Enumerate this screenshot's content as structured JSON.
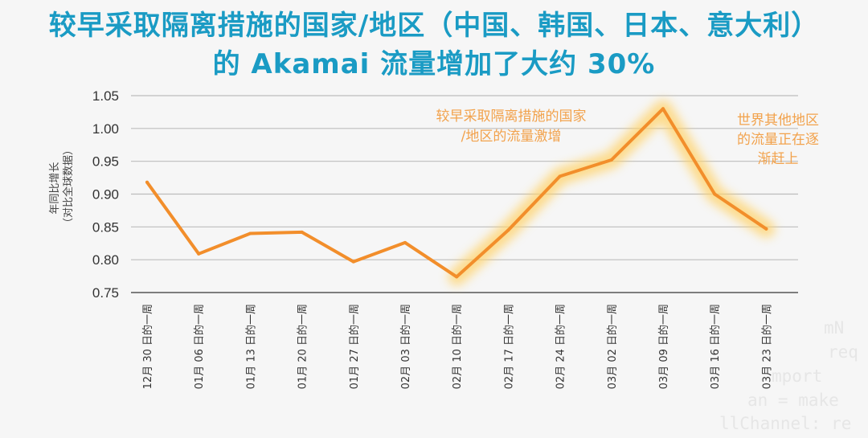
{
  "title": {
    "line1": "较早采取隔离措施的国家/地区（中国、韩国、日本、意大利）",
    "line2": "的 Akamai 流量增加了大约 30%"
  },
  "chart_data": {
    "type": "line",
    "ylabel_line1": "年同比增长",
    "ylabel_line2": "（对比全球数据）",
    "ylim": [
      0.75,
      1.05
    ],
    "yticks": [
      "1.05",
      "1.00",
      "0.95",
      "0.90",
      "0.85",
      "0.80",
      "0.75"
    ],
    "ytick_values": [
      1.05,
      1.0,
      0.95,
      0.9,
      0.85,
      0.8,
      0.75
    ],
    "categories": [
      "12月 30 日的一周",
      "01月 06 日的一周",
      "01月 13 日的一周",
      "01月 20 日的一周",
      "01月 27 日的一周",
      "02月 03 日的一周",
      "02月 10 日的一周",
      "02月 17 日的一周",
      "02月 24 日的一周",
      "03月 02 日的一周",
      "03月 09 日的一周",
      "03月 16 日的一周",
      "03月 23 日的一周"
    ],
    "values": [
      0.918,
      0.809,
      0.84,
      0.842,
      0.797,
      0.826,
      0.774,
      0.845,
      0.927,
      0.952,
      1.03,
      0.9,
      0.847
    ],
    "highlight_start_index": 6,
    "grid": true,
    "line_color": "#f28e2b",
    "glow_color": "#ffd36a",
    "annotations": [
      {
        "lines": [
          "较早采取隔离措施的国家",
          "/地区的流量激增"
        ]
      },
      {
        "lines": [
          "世界其他地区",
          "的流量正在逐",
          "渐赶上"
        ]
      }
    ]
  },
  "background_code": [
    "mN",
    "req",
    "mport",
    "an = make",
    "llChannel: re"
  ]
}
